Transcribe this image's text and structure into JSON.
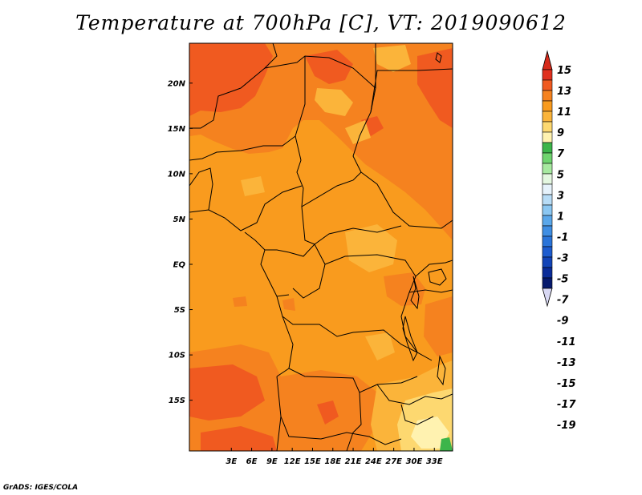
{
  "title": "Temperature at 700hPa [C], VT: 2019090612",
  "credit": "GrADS: IGES/COLA",
  "map": {
    "lat_labels": [
      {
        "label": "20N",
        "lat": 20
      },
      {
        "label": "15N",
        "lat": 15
      },
      {
        "label": "10N",
        "lat": 10
      },
      {
        "label": "5N",
        "lat": 5
      },
      {
        "label": "EQ",
        "lat": 0
      },
      {
        "label": "5S",
        "lat": -5
      },
      {
        "label": "10S",
        "lat": -10
      },
      {
        "label": "15S",
        "lat": -15
      }
    ],
    "lon_labels": [
      {
        "label": "3E",
        "lon": 3
      },
      {
        "label": "6E",
        "lon": 6
      },
      {
        "label": "9E",
        "lon": 9
      },
      {
        "label": "12E",
        "lon": 12
      },
      {
        "label": "15E",
        "lon": 15
      },
      {
        "label": "18E",
        "lon": 18
      },
      {
        "label": "21E",
        "lon": 21
      },
      {
        "label": "24E",
        "lon": 24
      },
      {
        "label": "27E",
        "lon": 27
      },
      {
        "label": "30E",
        "lon": 30
      },
      {
        "label": "33E",
        "lon": 33
      }
    ]
  },
  "colorbar": {
    "labels": [
      "15",
      "13",
      "11",
      "9",
      "7",
      "5",
      "3",
      "1",
      "-1",
      "-3",
      "-5",
      "-7",
      "-9",
      "-11",
      "-13",
      "-15",
      "-17",
      "-19"
    ],
    "colors": [
      "#e0301e",
      "#f05a20",
      "#f5821f",
      "#f99b1e",
      "#fbb43a",
      "#fdd870",
      "#fff2b0",
      "#3cb54a",
      "#6fd46f",
      "#a7e9a0",
      "#e4f7e0",
      "#e6f2fb",
      "#b7dcf6",
      "#8bc7f2",
      "#5aa7ea",
      "#3f8ee3",
      "#2a74d9",
      "#1d5ccf",
      "#1244b8",
      "#0a2c99",
      "#061a6e"
    ],
    "top_arrow_color": "#d52a1b",
    "bottom_arrow_color": "#d8d8f3"
  },
  "field_colors": {
    "c15": "#e0301e",
    "c13": "#f05a20",
    "c11": "#f5821f",
    "c9": "#f99b1e",
    "c7": "#fbb43a",
    "c5": "#fdd870",
    "c3": "#fff2b0",
    "green": "#3cb54a"
  }
}
